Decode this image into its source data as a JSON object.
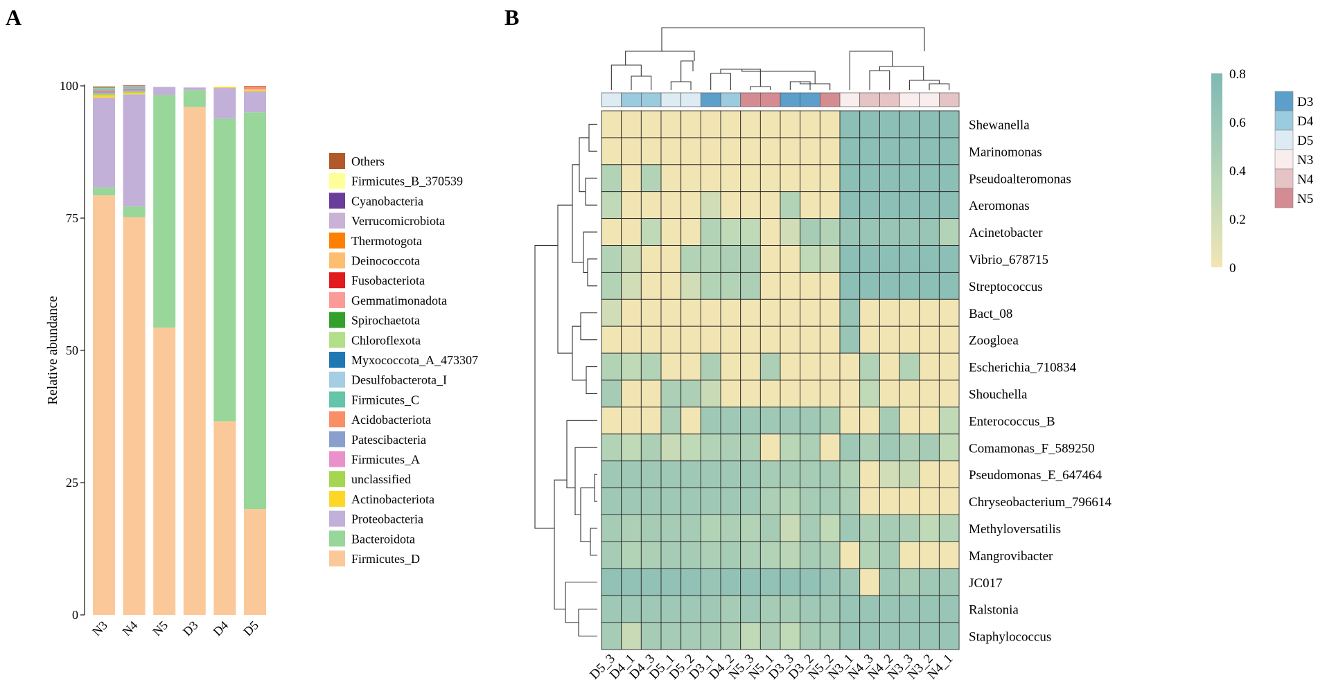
{
  "chart_data": [
    {
      "panel": "A",
      "type": "bar",
      "stacked": true,
      "ylabel": "Relative abundance",
      "ylim": [
        0,
        100
      ],
      "yticks": [
        "0",
        "25",
        "50",
        "75",
        "100"
      ],
      "categories": [
        "N3",
        "N4",
        "N5",
        "D3",
        "D4",
        "D5"
      ],
      "series": [
        {
          "name": "Firmicutes_D",
          "color": "#FBC999",
          "values": [
            79.3,
            75.2,
            54.3,
            96.0,
            36.6,
            20.0
          ]
        },
        {
          "name": "Bacteroidota",
          "color": "#98D69A",
          "values": [
            1.5,
            2.0,
            44.0,
            3.2,
            57.2,
            75.0
          ]
        },
        {
          "name": "Proteobacteria",
          "color": "#C2B0D8",
          "values": [
            17.0,
            21.2,
            1.5,
            0.5,
            5.8,
            4.0
          ]
        },
        {
          "name": "Actinobacteriota",
          "color": "#FDD726",
          "values": [
            0.4,
            0.3,
            0.0,
            0.0,
            0.2,
            0.3
          ]
        },
        {
          "name": "unclassified",
          "color": "#A4D650",
          "values": [
            0.3,
            0.2,
            0.0,
            0.0,
            0.0,
            0.0
          ]
        },
        {
          "name": "Firmicutes_A",
          "color": "#E991CA",
          "values": [
            0.2,
            0.2,
            0.0,
            0.0,
            0.0,
            0.1
          ]
        },
        {
          "name": "Patescibacteria",
          "color": "#8B9FCC",
          "values": [
            0.3,
            0.3,
            0.0,
            0.0,
            0.0,
            0.0
          ]
        },
        {
          "name": "Acidobacteriota",
          "color": "#FA8E66",
          "values": [
            0.2,
            0.1,
            0.0,
            0.0,
            0.0,
            0.4
          ]
        },
        {
          "name": "Firmicutes_C",
          "color": "#66C4A8",
          "values": [
            0.1,
            0.1,
            0.0,
            0.0,
            0.0,
            0.0
          ]
        },
        {
          "name": "Desulfobacterota_I",
          "color": "#A6CEE3",
          "values": [
            0.1,
            0.1,
            0.0,
            0.0,
            0.0,
            0.0
          ]
        },
        {
          "name": "Myxococcota_A_473307",
          "color": "#1F78B4",
          "values": [
            0.1,
            0.1,
            0.0,
            0.0,
            0.0,
            0.0
          ]
        },
        {
          "name": "Chloroflexota",
          "color": "#B2DF8A",
          "values": [
            0.1,
            0.1,
            0.0,
            0.0,
            0.0,
            0.0
          ]
        },
        {
          "name": "Spirochaetota",
          "color": "#33A02C",
          "values": [
            0.1,
            0.0,
            0.0,
            0.0,
            0.0,
            0.0
          ]
        },
        {
          "name": "Gemmatimonadota",
          "color": "#FB9A99",
          "values": [
            0.1,
            0.1,
            0.0,
            0.0,
            0.0,
            0.1
          ]
        },
        {
          "name": "Fusobacteriota",
          "color": "#E31A1C",
          "values": [
            0.0,
            0.0,
            0.0,
            0.0,
            0.0,
            0.0
          ]
        },
        {
          "name": "Deinococcota",
          "color": "#FDBF6F",
          "values": [
            0.0,
            0.0,
            0.0,
            0.0,
            0.0,
            0.0
          ]
        },
        {
          "name": "Thermotogota",
          "color": "#FF7F00",
          "values": [
            0.0,
            0.0,
            0.0,
            0.0,
            0.0,
            0.0
          ]
        },
        {
          "name": "Verrucomicrobiota",
          "color": "#CAB2D6",
          "values": [
            0.0,
            0.0,
            0.0,
            0.0,
            0.0,
            0.0
          ]
        },
        {
          "name": "Cyanobacteria",
          "color": "#6A3D9A",
          "values": [
            0.0,
            0.0,
            0.0,
            0.0,
            0.0,
            0.0
          ]
        },
        {
          "name": "Firmicutes_B_370539",
          "color": "#FFFF99",
          "values": [
            0.0,
            0.0,
            0.0,
            0.0,
            0.0,
            0.0
          ]
        },
        {
          "name": "Others",
          "color": "#B15928",
          "values": [
            0.1,
            0.1,
            0.0,
            0.0,
            0.0,
            0.1
          ]
        }
      ],
      "legend_order": [
        "Others",
        "Firmicutes_B_370539",
        "Cyanobacteria",
        "Verrucomicrobiota",
        "Thermotogota",
        "Deinococcota",
        "Fusobacteriota",
        "Gemmatimonadota",
        "Spirochaetota",
        "Chloroflexota",
        "Myxococcota_A_473307",
        "Desulfobacterota_I",
        "Firmicutes_C",
        "Acidobacteriota",
        "Patescibacteria",
        "Firmicutes_A",
        "unclassified",
        "Actinobacteriota",
        "Proteobacteria",
        "Bacteroidota",
        "Firmicutes_D"
      ]
    },
    {
      "panel": "B",
      "type": "heatmap",
      "columns": [
        "D5_3",
        "D4_1",
        "D4_3",
        "D5_1",
        "D5_2",
        "D3_1",
        "D4_2",
        "N5_3",
        "N5_1",
        "D3_3",
        "D3_2",
        "N5_2",
        "N3_1",
        "N4_3",
        "N4_2",
        "N3_3",
        "N3_2",
        "N4_1"
      ],
      "column_groups": [
        "D5",
        "D4",
        "D4",
        "D5",
        "D5",
        "D3",
        "D4",
        "N5",
        "N5",
        "D3",
        "D3",
        "N5",
        "N3",
        "N4",
        "N4",
        "N3",
        "N3",
        "N4"
      ],
      "rows": [
        "Shewanella",
        "Marinomonas",
        "Pseudoalteromonas",
        "Aeromonas",
        "Acinetobacter",
        "Vibrio_678715",
        "Streptococcus",
        "Bact_08",
        "Zoogloea",
        "Escherichia_710834",
        "Shouchella",
        "Enterococcus_B",
        "Comamonas_F_589250",
        "Pseudomonas_E_647464",
        "Chryseobacterium_796614",
        "Methyloversatilis",
        "Mangrovibacter",
        "JC017",
        "Ralstonia",
        "Staphylococcus"
      ],
      "values": [
        [
          0.0,
          0.0,
          0.0,
          0.0,
          0.0,
          0.0,
          0.0,
          0.0,
          0.0,
          0.0,
          0.0,
          0.0,
          0.7,
          0.7,
          0.7,
          0.7,
          0.7,
          0.7
        ],
        [
          0.0,
          0.0,
          0.0,
          0.0,
          0.0,
          0.0,
          0.0,
          0.0,
          0.0,
          0.0,
          0.0,
          0.0,
          0.7,
          0.7,
          0.7,
          0.7,
          0.7,
          0.7
        ],
        [
          0.4,
          0.0,
          0.4,
          0.0,
          0.0,
          0.0,
          0.0,
          0.0,
          0.0,
          0.0,
          0.0,
          0.0,
          0.7,
          0.7,
          0.7,
          0.7,
          0.7,
          0.7
        ],
        [
          0.3,
          0.0,
          0.0,
          0.0,
          0.0,
          0.2,
          0.0,
          0.0,
          0.0,
          0.4,
          0.0,
          0.0,
          0.7,
          0.7,
          0.7,
          0.7,
          0.7,
          0.7
        ],
        [
          0.0,
          0.0,
          0.3,
          0.0,
          0.0,
          0.4,
          0.3,
          0.3,
          0.0,
          0.2,
          0.5,
          0.4,
          0.6,
          0.6,
          0.6,
          0.6,
          0.6,
          0.4
        ],
        [
          0.4,
          0.25,
          0.0,
          0.0,
          0.4,
          0.4,
          0.45,
          0.45,
          0.0,
          0.0,
          0.3,
          0.25,
          0.7,
          0.7,
          0.7,
          0.7,
          0.7,
          0.7
        ],
        [
          0.4,
          0.2,
          0.0,
          0.0,
          0.2,
          0.4,
          0.4,
          0.45,
          0.0,
          0.0,
          0.0,
          0.0,
          0.7,
          0.7,
          0.7,
          0.7,
          0.7,
          0.7
        ],
        [
          0.2,
          0.0,
          0.0,
          0.0,
          0.0,
          0.0,
          0.0,
          0.0,
          0.0,
          0.0,
          0.0,
          0.0,
          0.6,
          0.0,
          0.0,
          0.0,
          0.0,
          0.0
        ],
        [
          0.0,
          0.0,
          0.0,
          0.0,
          0.0,
          0.0,
          0.0,
          0.0,
          0.0,
          0.0,
          0.0,
          0.0,
          0.6,
          0.0,
          0.0,
          0.0,
          0.0,
          0.0
        ],
        [
          0.4,
          0.3,
          0.4,
          0.0,
          0.0,
          0.45,
          0.0,
          0.0,
          0.45,
          0.0,
          0.0,
          0.0,
          0.0,
          0.4,
          0.0,
          0.4,
          0.0,
          0.0
        ],
        [
          0.5,
          0.0,
          0.0,
          0.45,
          0.45,
          0.25,
          0.0,
          0.0,
          0.0,
          0.0,
          0.0,
          0.0,
          0.0,
          0.3,
          0.0,
          0.0,
          0.0,
          0.0
        ],
        [
          0.0,
          0.0,
          0.0,
          0.45,
          0.0,
          0.55,
          0.55,
          0.55,
          0.55,
          0.55,
          0.55,
          0.5,
          0.0,
          0.0,
          0.5,
          0.0,
          0.0,
          0.3
        ],
        [
          0.4,
          0.3,
          0.45,
          0.25,
          0.3,
          0.4,
          0.45,
          0.45,
          0.0,
          0.35,
          0.45,
          0.0,
          0.55,
          0.45,
          0.55,
          0.45,
          0.5,
          0.3
        ],
        [
          0.55,
          0.55,
          0.55,
          0.55,
          0.55,
          0.55,
          0.55,
          0.55,
          0.5,
          0.5,
          0.5,
          0.5,
          0.4,
          0.0,
          0.2,
          0.25,
          0.0,
          0.0
        ],
        [
          0.55,
          0.55,
          0.55,
          0.55,
          0.55,
          0.55,
          0.55,
          0.55,
          0.45,
          0.4,
          0.5,
          0.5,
          0.45,
          0.0,
          0.0,
          0.0,
          0.0,
          0.0
        ],
        [
          0.5,
          0.45,
          0.5,
          0.5,
          0.5,
          0.4,
          0.45,
          0.4,
          0.5,
          0.25,
          0.5,
          0.3,
          0.55,
          0.45,
          0.5,
          0.45,
          0.3,
          0.4
        ],
        [
          0.5,
          0.4,
          0.45,
          0.5,
          0.5,
          0.45,
          0.5,
          0.45,
          0.4,
          0.35,
          0.5,
          0.45,
          0.0,
          0.4,
          0.5,
          0.0,
          0.0,
          0.0
        ],
        [
          0.65,
          0.65,
          0.65,
          0.65,
          0.65,
          0.6,
          0.65,
          0.65,
          0.65,
          0.65,
          0.65,
          0.6,
          0.55,
          0.0,
          0.55,
          0.5,
          0.55,
          0.55
        ],
        [
          0.55,
          0.55,
          0.55,
          0.55,
          0.55,
          0.55,
          0.5,
          0.55,
          0.5,
          0.5,
          0.55,
          0.55,
          0.6,
          0.6,
          0.6,
          0.6,
          0.6,
          0.6
        ],
        [
          0.5,
          0.25,
          0.5,
          0.5,
          0.5,
          0.5,
          0.45,
          0.3,
          0.45,
          0.3,
          0.5,
          0.5,
          0.6,
          0.6,
          0.6,
          0.6,
          0.6,
          0.6
        ]
      ],
      "colorbar": {
        "min": 0,
        "max": 0.8,
        "ticks": [
          "0",
          "0.2",
          "0.4",
          "0.6",
          "0.8"
        ],
        "low_color": "#F2E5B4",
        "mid_color": "#BDD8B7",
        "high_color": "#7FB8B5"
      },
      "group_legend": [
        {
          "name": "D3",
          "color": "#5B9FCA"
        },
        {
          "name": "D4",
          "color": "#9ACBDF"
        },
        {
          "name": "D5",
          "color": "#DDEBF3"
        },
        {
          "name": "N3",
          "color": "#F9EDEE"
        },
        {
          "name": "N4",
          "color": "#E6C3C4"
        },
        {
          "name": "N5",
          "color": "#D58B92"
        }
      ]
    }
  ],
  "panels": {
    "a_label": "A",
    "b_label": "B"
  }
}
